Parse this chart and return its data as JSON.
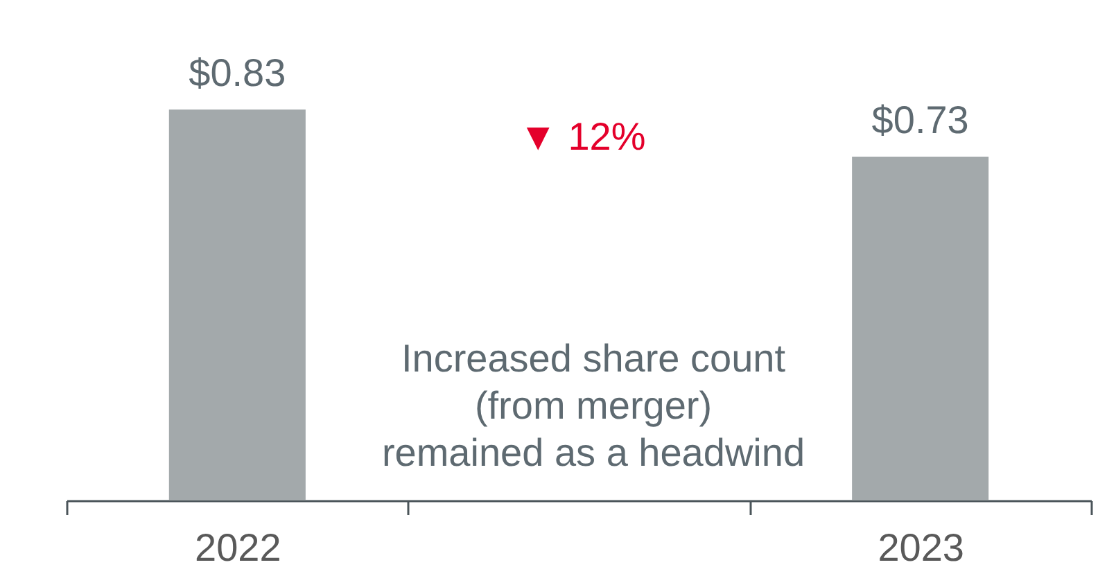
{
  "chart_data": {
    "type": "bar",
    "categories": [
      "2022",
      null,
      "2023"
    ],
    "values": [
      0.83,
      null,
      0.73
    ],
    "value_labels": [
      "$0.83",
      null,
      "$0.73"
    ],
    "color": "#a3a9ab",
    "tick_labels": "x",
    "annotations": [
      "▼ 12%",
      "Increased share count\n(from merger)\nremained as a headwind"
    ]
  }
}
